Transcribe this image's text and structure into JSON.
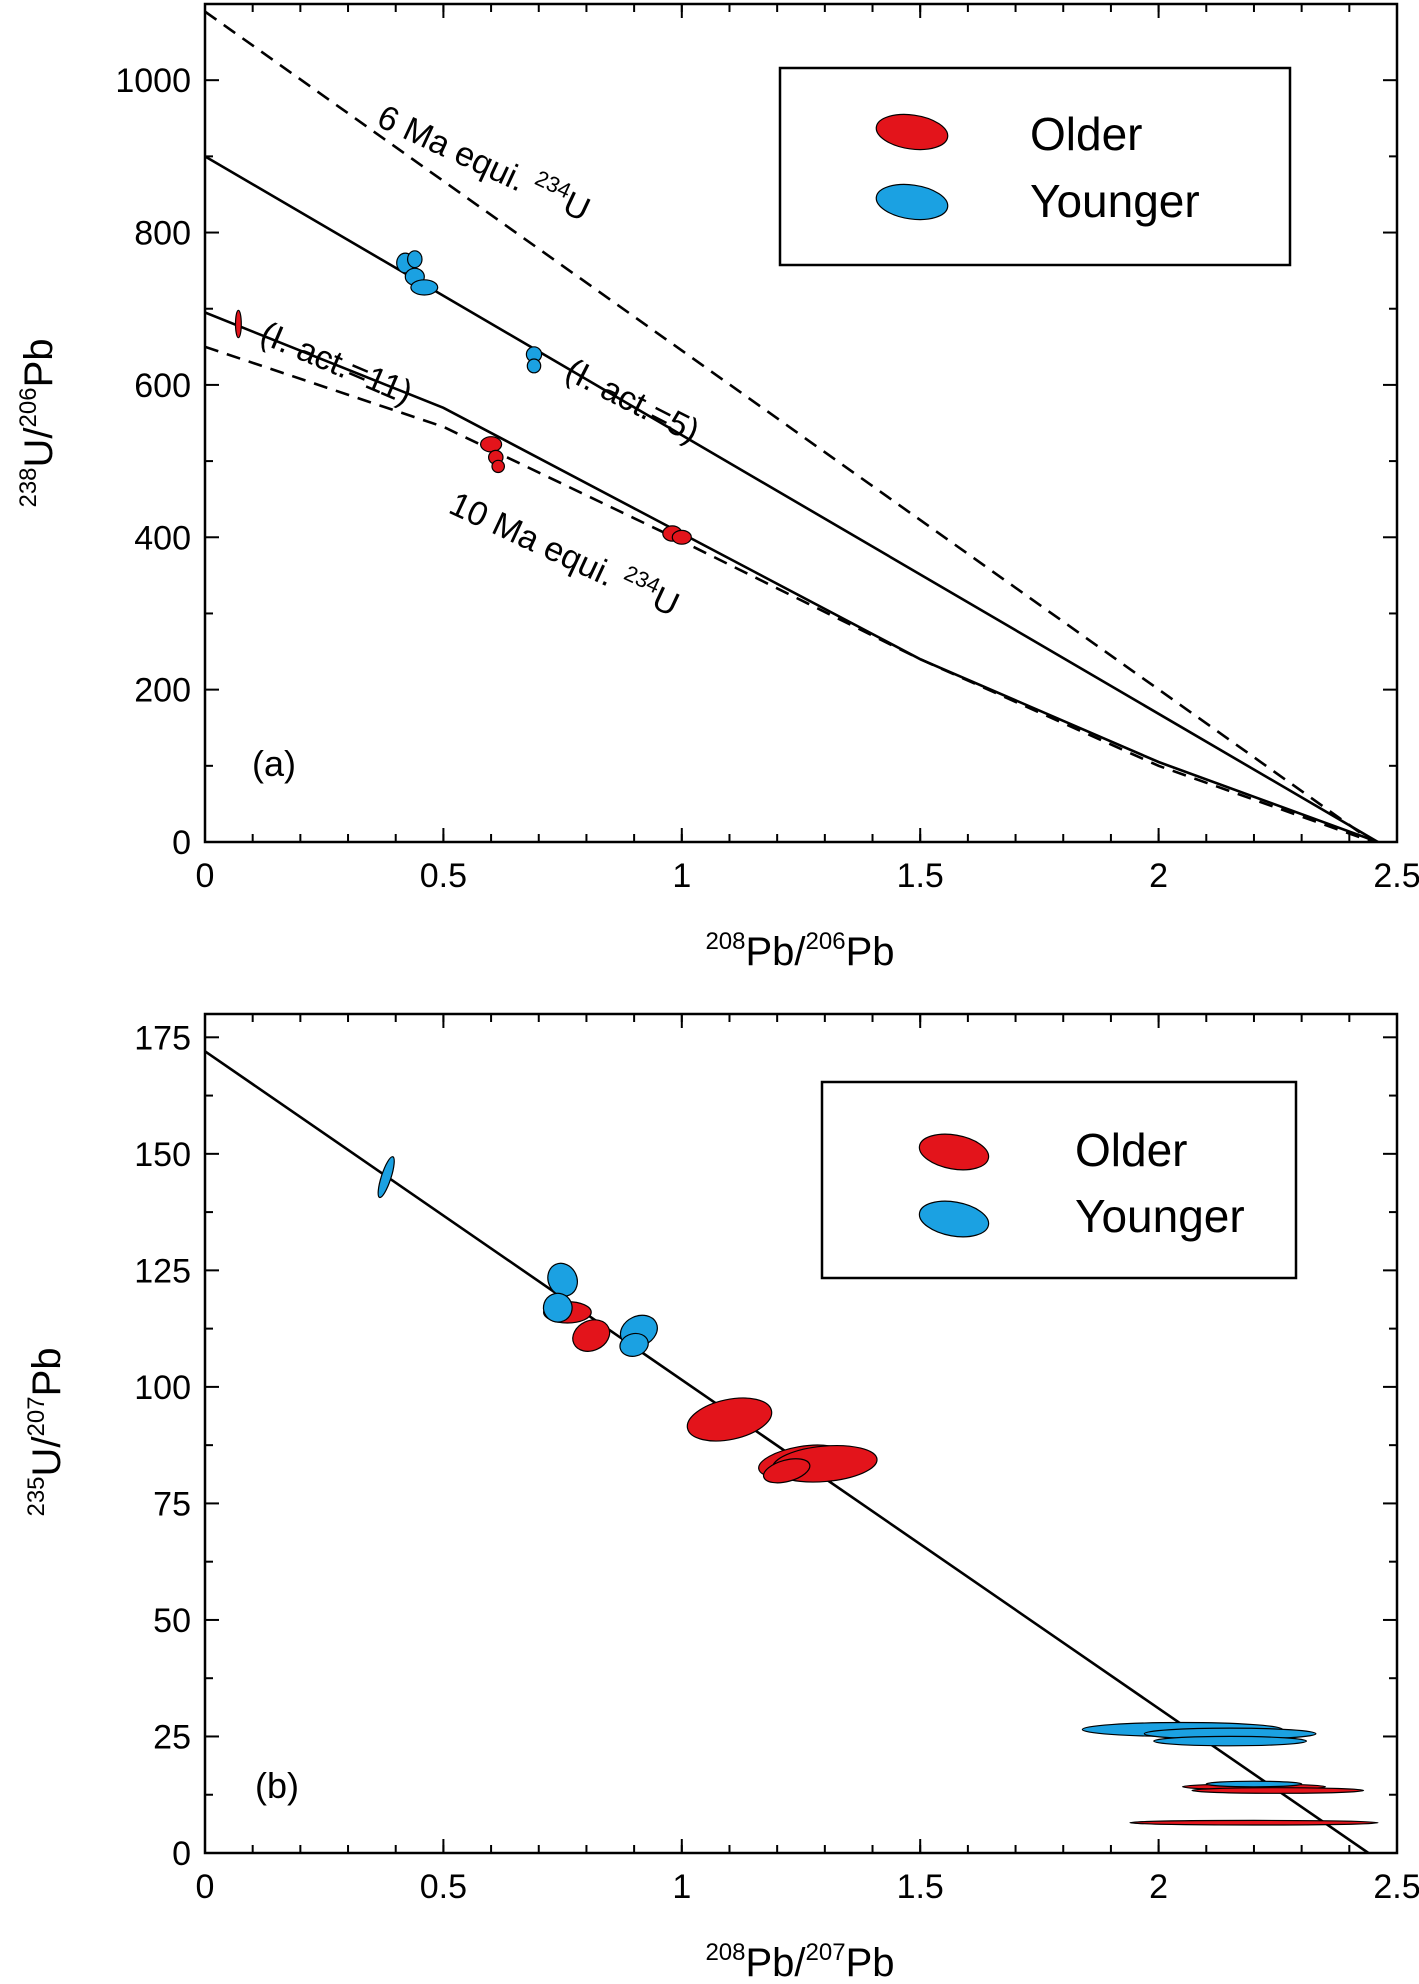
{
  "colors": {
    "older": "#e3141b",
    "younger": "#1ba1e2",
    "ink": "#000000"
  },
  "chart_data": [
    {
      "panel": "(a)",
      "type": "scatter",
      "xlabel": {
        "sup1": "208",
        "text1": "Pb/",
        "sup2": "206",
        "text2": "Pb"
      },
      "ylabel": {
        "sup1": "238",
        "text1": "U/",
        "sup2": "206",
        "text2": "Pb"
      },
      "xlim": [
        0,
        2.5
      ],
      "ylim": [
        0,
        1100
      ],
      "xticks": [
        "0",
        "0.5",
        "1",
        "1.5",
        "2",
        "2.5"
      ],
      "xtick_values": [
        0,
        0.5,
        1,
        1.5,
        2,
        2.5
      ],
      "yticks": [
        "0",
        "200",
        "400",
        "600",
        "800",
        "1000"
      ],
      "ytick_values": [
        0,
        200,
        400,
        600,
        800,
        1000
      ],
      "legend": {
        "position": "top-right",
        "entries": [
          {
            "label": "Older",
            "series": "older"
          },
          {
            "label": "Younger",
            "series": "younger"
          }
        ]
      },
      "lines": [
        {
          "name": "6 Ma equiline",
          "style": "dashed",
          "x": [
            0,
            2.45
          ],
          "y": [
            1090,
            0
          ]
        },
        {
          "name": "isochron I.act.=5",
          "style": "solid",
          "x": [
            0,
            2.46
          ],
          "y": [
            900,
            0
          ]
        },
        {
          "name": "isochron I.act.=11",
          "style": "solid",
          "x": [
            0,
            0.5,
            1.0,
            1.5,
            2.0,
            2.46
          ],
          "y": [
            695,
            570,
            405,
            240,
            105,
            0
          ]
        },
        {
          "name": "10 Ma equiline",
          "style": "dashed",
          "x": [
            0,
            0.5,
            1.0,
            1.5,
            2.0,
            2.45
          ],
          "y": [
            650,
            545,
            395,
            240,
            100,
            0
          ]
        }
      ],
      "labels": [
        {
          "text": "6 Ma equi. ",
          "sup": "234",
          "after": "U",
          "near_x": 0.75,
          "near_y": 840
        },
        {
          "text": "(I. act.=5)",
          "near_x": 0.8,
          "near_y": 560
        },
        {
          "text": "(I. act.=11)",
          "near_x": 0.2,
          "near_y": 615
        },
        {
          "text": "10 Ma equi. ",
          "sup": "234",
          "after": "U",
          "near_x": 0.6,
          "near_y": 400
        }
      ],
      "series": [
        {
          "name": "Older",
          "key": "older",
          "points": [
            {
              "x": 0.07,
              "y": 680,
              "rx": 0.006,
              "ry": 18,
              "angle": 0
            },
            {
              "x": 0.6,
              "y": 522,
              "rx": 0.022,
              "ry": 10,
              "angle": 0
            },
            {
              "x": 0.61,
              "y": 505,
              "rx": 0.015,
              "ry": 9,
              "angle": 0
            },
            {
              "x": 0.615,
              "y": 493,
              "rx": 0.013,
              "ry": 8,
              "angle": 0
            },
            {
              "x": 0.98,
              "y": 405,
              "rx": 0.02,
              "ry": 10,
              "angle": 0
            },
            {
              "x": 1.0,
              "y": 400,
              "rx": 0.02,
              "ry": 9,
              "angle": 0
            }
          ]
        },
        {
          "name": "Younger",
          "key": "younger",
          "points": [
            {
              "x": 0.42,
              "y": 760,
              "rx": 0.018,
              "ry": 13,
              "angle": 0
            },
            {
              "x": 0.44,
              "y": 765,
              "rx": 0.015,
              "ry": 11,
              "angle": 0
            },
            {
              "x": 0.44,
              "y": 742,
              "rx": 0.02,
              "ry": 11,
              "angle": 0
            },
            {
              "x": 0.46,
              "y": 728,
              "rx": 0.028,
              "ry": 10,
              "angle": 0
            },
            {
              "x": 0.69,
              "y": 640,
              "rx": 0.016,
              "ry": 10,
              "angle": 0
            },
            {
              "x": 0.69,
              "y": 625,
              "rx": 0.014,
              "ry": 9,
              "angle": 0
            }
          ]
        }
      ]
    },
    {
      "panel": "(b)",
      "type": "scatter",
      "xlabel": {
        "sup1": "208",
        "text1": "Pb/",
        "sup2": "207",
        "text2": "Pb"
      },
      "ylabel": {
        "sup1": "235",
        "text1": "U/",
        "sup2": "207",
        "text2": "Pb"
      },
      "xlim": [
        0,
        2.5
      ],
      "ylim": [
        0,
        180
      ],
      "xticks": [
        "0",
        "0.5",
        "1",
        "1.5",
        "2",
        "2.5"
      ],
      "xtick_values": [
        0,
        0.5,
        1,
        1.5,
        2,
        2.5
      ],
      "yticks": [
        "0",
        "25",
        "50",
        "75",
        "100",
        "125",
        "150",
        "175"
      ],
      "ytick_values": [
        0,
        25,
        50,
        75,
        100,
        125,
        150,
        175
      ],
      "legend": {
        "position": "top-right",
        "entries": [
          {
            "label": "Older",
            "series": "older"
          },
          {
            "label": "Younger",
            "series": "younger"
          }
        ]
      },
      "lines": [
        {
          "name": "isochron",
          "style": "solid",
          "x": [
            0,
            2.44
          ],
          "y": [
            172,
            0
          ]
        }
      ],
      "labels": [],
      "series": [
        {
          "name": "Older",
          "key": "older",
          "points": [
            {
              "x": 0.76,
              "y": 116,
              "rx": 0.05,
              "ry": 2.3,
              "angle": 0
            },
            {
              "x": 0.81,
              "y": 111,
              "rx": 0.04,
              "ry": 3.2,
              "angle": -25
            },
            {
              "x": 1.1,
              "y": 93,
              "rx": 0.09,
              "ry": 4.3,
              "angle": -12
            },
            {
              "x": 1.25,
              "y": 84,
              "rx": 0.09,
              "ry": 3.2,
              "angle": -10
            },
            {
              "x": 1.3,
              "y": 83.5,
              "rx": 0.11,
              "ry": 3.8,
              "angle": -5
            },
            {
              "x": 1.22,
              "y": 82,
              "rx": 0.05,
              "ry": 2.3,
              "angle": -15
            },
            {
              "x": 2.2,
              "y": 14.2,
              "rx": 0.15,
              "ry": 0.6,
              "angle": 0
            },
            {
              "x": 2.25,
              "y": 13.4,
              "rx": 0.18,
              "ry": 0.6,
              "angle": 0
            },
            {
              "x": 2.2,
              "y": 6.5,
              "rx": 0.26,
              "ry": 0.5,
              "angle": 0
            }
          ]
        },
        {
          "name": "Younger",
          "key": "younger",
          "points": [
            {
              "x": 0.38,
              "y": 145,
              "rx": 0.01,
              "ry": 4.6,
              "angle": 18
            },
            {
              "x": 0.75,
              "y": 123,
              "rx": 0.03,
              "ry": 3.6,
              "angle": -25
            },
            {
              "x": 0.74,
              "y": 117,
              "rx": 0.03,
              "ry": 3.1,
              "angle": -25
            },
            {
              "x": 0.91,
              "y": 112,
              "rx": 0.04,
              "ry": 3.2,
              "angle": -25
            },
            {
              "x": 0.9,
              "y": 109,
              "rx": 0.03,
              "ry": 2.4,
              "angle": -15
            },
            {
              "x": 2.05,
              "y": 26.5,
              "rx": 0.21,
              "ry": 1.5,
              "angle": 0
            },
            {
              "x": 2.15,
              "y": 25.6,
              "rx": 0.18,
              "ry": 1.2,
              "angle": 0
            },
            {
              "x": 2.15,
              "y": 24,
              "rx": 0.16,
              "ry": 1.0,
              "angle": 0
            },
            {
              "x": 2.2,
              "y": 14.8,
              "rx": 0.1,
              "ry": 0.6,
              "angle": 0
            }
          ]
        }
      ]
    }
  ]
}
